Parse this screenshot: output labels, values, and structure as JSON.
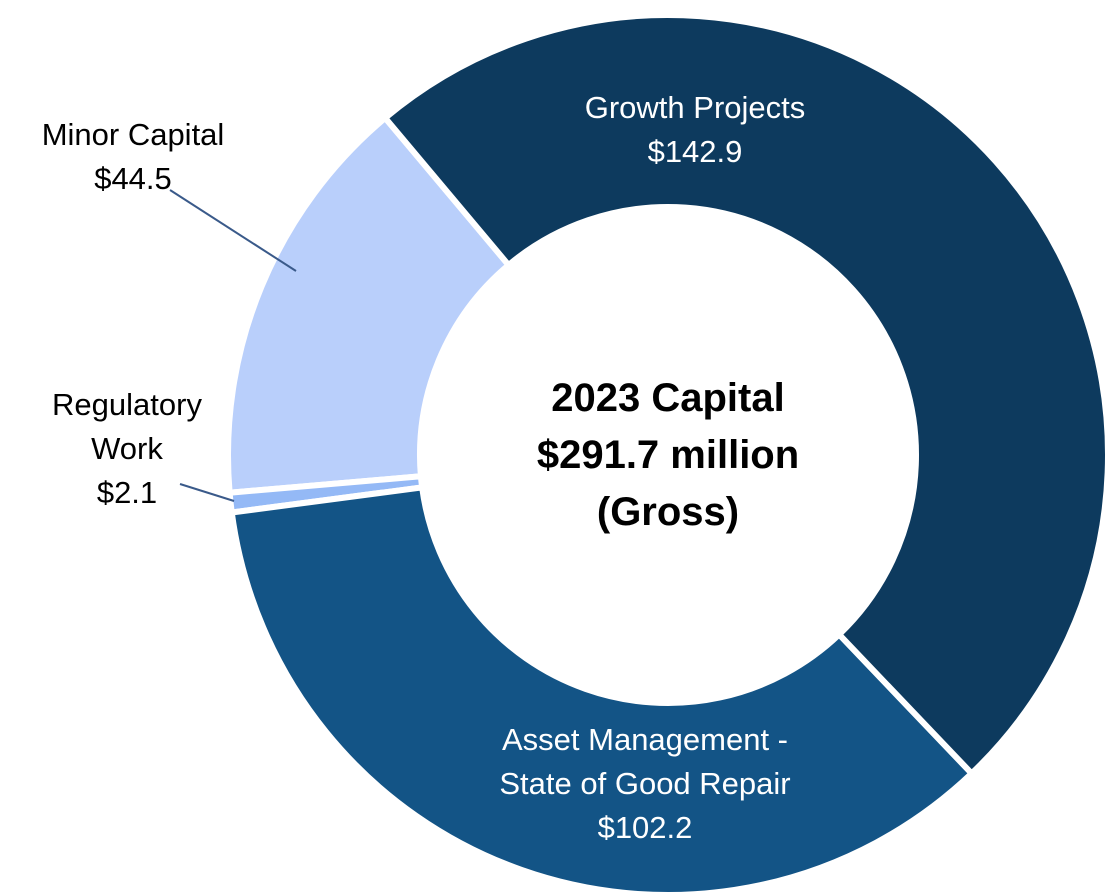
{
  "chart_data": {
    "type": "donut",
    "title": "2023 Capital\n$291.7 million\n(Gross)",
    "categories": [
      "Growth Projects",
      "Asset Management - State of Good Repair",
      "Regulatory Work",
      "Minor Capital"
    ],
    "values": [
      142.9,
      102.2,
      2.1,
      44.5
    ],
    "value_labels": [
      "$142.9",
      "$102.2",
      "$2.1",
      "$44.5"
    ],
    "colors": [
      "#0d3a5e",
      "#135486",
      "#94b9f6",
      "#b9cffb"
    ]
  }
}
